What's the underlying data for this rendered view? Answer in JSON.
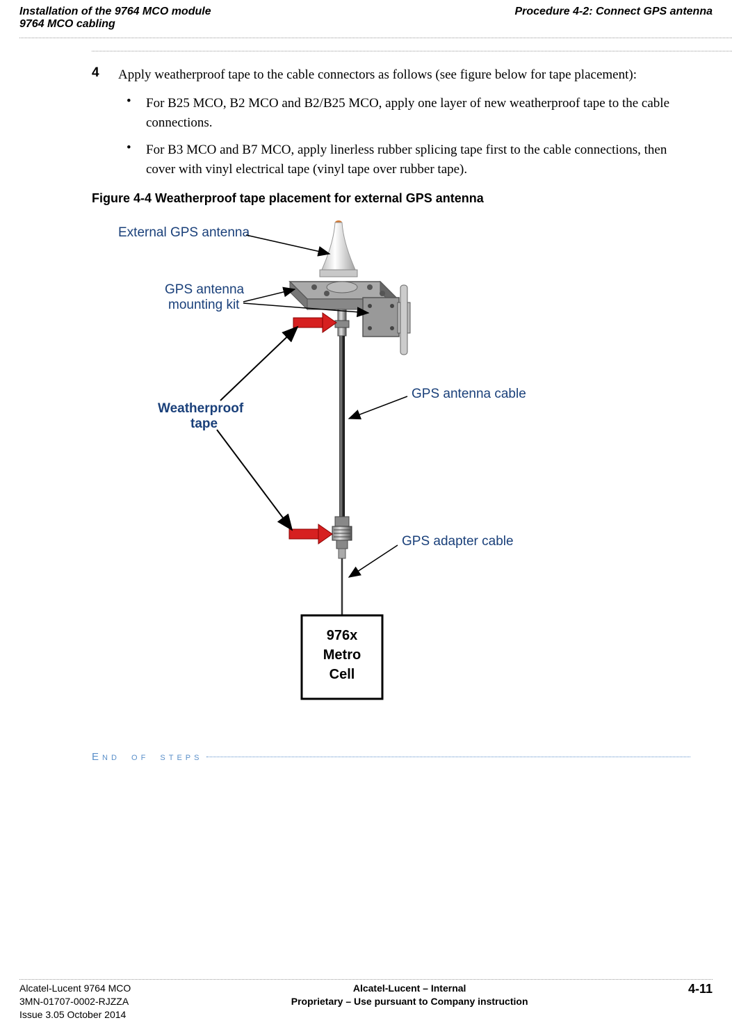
{
  "header": {
    "left_line1": "Installation of the 9764 MCO module",
    "left_line2": "9764 MCO cabling",
    "right": "Procedure 4-2: Connect GPS antenna"
  },
  "step": {
    "number": "4",
    "text": "Apply weatherproof tape to the cable connectors as follows (see figure below for tape placement):"
  },
  "bullets": {
    "item1": "For B25 MCO, B2 MCO and B2/B25 MCO, apply one layer of new weatherproof tape to the cable connections.",
    "item2": "For B3 MCO and B7 MCO, apply linerless rubber splicing tape first to the cable connections, then cover with vinyl electrical tape (vinyl tape over rubber tape)."
  },
  "figure": {
    "caption": "Figure 4-4  Weatherproof tape placement for external GPS antenna",
    "labels": {
      "antenna": "External GPS antenna",
      "mounting_kit_line1": "GPS antenna",
      "mounting_kit_line2": "mounting kit",
      "weatherproof_line1": "Weatherproof",
      "weatherproof_line2": "tape",
      "antenna_cable": "GPS antenna cable",
      "adapter_cable": "GPS adapter cable",
      "device_line1": "976x",
      "device_line2": "Metro",
      "device_line3": "Cell"
    },
    "colors": {
      "arrow_red": "#d62020",
      "text_blue": "#1a407a",
      "line_black": "#000000",
      "fill_white": "#ffffff",
      "gps_top_orange": "#d47730",
      "gps_body_light": "#f2f2f2",
      "bracket_gray": "#888888",
      "cable_dark": "#2a2a2a",
      "connector_mid": "#6a6a6a"
    }
  },
  "end_steps": "END OF STEPS",
  "footer": {
    "left_line1": "Alcatel-Lucent 9764 MCO",
    "left_line2": "3MN-01707-0002-RJZZA",
    "left_line3": "Issue 3.05   October 2014",
    "center_line1": "Alcatel-Lucent – Internal",
    "center_line2": "Proprietary – Use pursuant to Company instruction",
    "right": "4-11"
  }
}
